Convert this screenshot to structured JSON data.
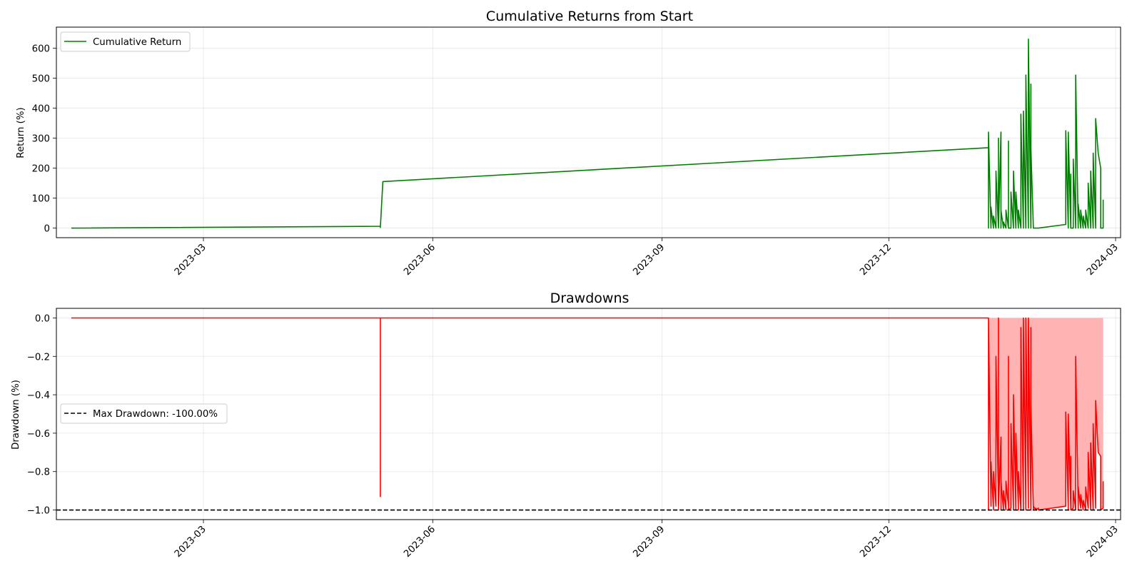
{
  "chart_data": [
    {
      "type": "line",
      "title": "Cumulative Returns from Start",
      "xlabel": "",
      "ylabel": "Return (%)",
      "x_range": [
        "2023-01-01",
        "2024-03-03"
      ],
      "ylim": [
        -32,
        670
      ],
      "grid": true,
      "legend_position": "top-left",
      "x_ticks": [
        "2023-03",
        "2023-06",
        "2023-09",
        "2023-12",
        "2024-03"
      ],
      "y_ticks": [
        0,
        100,
        200,
        300,
        400,
        500,
        600
      ],
      "series": [
        {
          "name": "Cumulative Return",
          "color": "#008000",
          "x": [
            "2023-01-07",
            "2023-05-11",
            "2023-05-11",
            "2023-05-12",
            "2024-01-10",
            "2024-01-10",
            "2024-01-10",
            "2024-01-11",
            "2024-01-11",
            "2024-01-12",
            "2024-01-12",
            "2024-01-13",
            "2024-01-13",
            "2024-01-13",
            "2024-01-14",
            "2024-01-14",
            "2024-01-14",
            "2024-01-15",
            "2024-01-15",
            "2024-01-15",
            "2024-01-16",
            "2024-01-16",
            "2024-01-17",
            "2024-01-17",
            "2024-01-18",
            "2024-01-18",
            "2024-01-18",
            "2024-01-19",
            "2024-01-19",
            "2024-01-20",
            "2024-01-20",
            "2024-01-21",
            "2024-01-21",
            "2024-01-22",
            "2024-01-22",
            "2024-01-23",
            "2024-01-23",
            "2024-01-24",
            "2024-01-24",
            "2024-01-25",
            "2024-01-25",
            "2024-01-26",
            "2024-01-26",
            "2024-01-27",
            "2024-01-27",
            "2024-01-27",
            "2024-01-28",
            "2024-01-28",
            "2024-01-29",
            "2024-01-29",
            "2024-01-29",
            "2024-01-30",
            "2024-01-30",
            "2024-02-10",
            "2024-02-10",
            "2024-02-11",
            "2024-02-11",
            "2024-02-12",
            "2024-02-12",
            "2024-02-12",
            "2024-02-13",
            "2024-02-13",
            "2024-02-14",
            "2024-02-14",
            "2024-02-15",
            "2024-02-15",
            "2024-02-16",
            "2024-02-16",
            "2024-02-17",
            "2024-02-17",
            "2024-02-18",
            "2024-02-18",
            "2024-02-19",
            "2024-02-19",
            "2024-02-20",
            "2024-02-20",
            "2024-02-21",
            "2024-02-21",
            "2024-02-22",
            "2024-02-22",
            "2024-02-23",
            "2024-02-24",
            "2024-02-24",
            "2024-02-25",
            "2024-02-25"
          ],
          "y": [
            0,
            6,
            2,
            155,
            268,
            0,
            320,
            0,
            70,
            0,
            40,
            0,
            90,
            190,
            0,
            300,
            0,
            320,
            0,
            60,
            0,
            20,
            0,
            60,
            0,
            290,
            0,
            0,
            120,
            0,
            190,
            0,
            120,
            0,
            60,
            0,
            380,
            0,
            390,
            0,
            510,
            0,
            630,
            0,
            480,
            270,
            0,
            0,
            0,
            0,
            0,
            0,
            0,
            12,
            325,
            0,
            320,
            0,
            180,
            0,
            0,
            230,
            0,
            510,
            0,
            80,
            0,
            60,
            0,
            40,
            0,
            60,
            0,
            150,
            0,
            190,
            0,
            250,
            0,
            365,
            250,
            200,
            0,
            0,
            95
          ]
        }
      ]
    },
    {
      "type": "area",
      "title": "Drawdowns",
      "xlabel": "",
      "ylabel": "Drawdown (%)",
      "x_range": [
        "2023-01-01",
        "2024-03-03"
      ],
      "ylim": [
        -1.05,
        0.05
      ],
      "grid": true,
      "legend_position": "center-left",
      "x_ticks": [
        "2023-03",
        "2023-06",
        "2023-09",
        "2023-12",
        "2024-03"
      ],
      "y_ticks": [
        0.0,
        -0.2,
        -0.4,
        -0.6,
        -0.8,
        -1.0
      ],
      "max_drawdown": {
        "name": "Max Drawdown: -100.00%",
        "value": -1.0,
        "color": "#000000"
      },
      "series": [
        {
          "name": "",
          "color": "#ff0000",
          "fill_color": "#ffb3b3",
          "x": [
            "2023-01-07",
            "2023-05-11",
            "2023-05-11",
            "2023-05-11",
            "2024-01-10",
            "2024-01-10",
            "2024-01-10",
            "2024-01-11",
            "2024-01-11",
            "2024-01-12",
            "2024-01-12",
            "2024-01-13",
            "2024-01-13",
            "2024-01-13",
            "2024-01-14",
            "2024-01-14",
            "2024-01-14",
            "2024-01-15",
            "2024-01-15",
            "2024-01-15",
            "2024-01-16",
            "2024-01-16",
            "2024-01-17",
            "2024-01-17",
            "2024-01-18",
            "2024-01-18",
            "2024-01-18",
            "2024-01-19",
            "2024-01-19",
            "2024-01-20",
            "2024-01-20",
            "2024-01-21",
            "2024-01-21",
            "2024-01-22",
            "2024-01-22",
            "2024-01-23",
            "2024-01-23",
            "2024-01-24",
            "2024-01-24",
            "2024-01-25",
            "2024-01-25",
            "2024-01-26",
            "2024-01-26",
            "2024-01-27",
            "2024-01-27",
            "2024-01-27",
            "2024-01-28",
            "2024-01-28",
            "2024-01-29",
            "2024-01-29",
            "2024-01-29",
            "2024-01-30",
            "2024-01-30",
            "2024-02-10",
            "2024-02-10",
            "2024-02-11",
            "2024-02-11",
            "2024-02-12",
            "2024-02-12",
            "2024-02-12",
            "2024-02-13",
            "2024-02-13",
            "2024-02-14",
            "2024-02-14",
            "2024-02-15",
            "2024-02-15",
            "2024-02-16",
            "2024-02-16",
            "2024-02-17",
            "2024-02-17",
            "2024-02-18",
            "2024-02-18",
            "2024-02-19",
            "2024-02-19",
            "2024-02-20",
            "2024-02-20",
            "2024-02-21",
            "2024-02-21",
            "2024-02-22",
            "2024-02-22",
            "2024-02-23",
            "2024-02-24",
            "2024-02-24",
            "2024-02-25",
            "2024-02-25"
          ],
          "y": [
            0,
            0,
            -0.93,
            0,
            0,
            -1.0,
            0,
            -0.98,
            -0.75,
            -1.0,
            -0.8,
            -0.98,
            -0.42,
            -0.2,
            -0.99,
            0,
            -1.0,
            -0.62,
            -1.0,
            -0.85,
            -1.0,
            -0.9,
            -1.0,
            -0.85,
            -0.98,
            -0.2,
            -1.0,
            -0.99,
            -0.55,
            -1.0,
            -0.4,
            -1.0,
            -0.6,
            -1.0,
            -0.8,
            -1.0,
            -0.05,
            -1.0,
            0,
            -1.0,
            0,
            -0.99,
            0,
            -1.0,
            -0.05,
            -0.45,
            -1.0,
            -0.98,
            -1.0,
            -0.99,
            -1.0,
            -0.99,
            -1.0,
            -0.98,
            -0.49,
            -1.0,
            -0.5,
            -0.99,
            -0.72,
            -1.0,
            -0.99,
            -0.9,
            -1.0,
            -0.2,
            -1.0,
            -0.88,
            -0.99,
            -0.92,
            -1.0,
            -0.95,
            -1.0,
            -0.88,
            -0.99,
            -0.7,
            -1.0,
            -0.65,
            -1.0,
            -0.55,
            -0.99,
            -0.43,
            -0.7,
            -0.72,
            -1.0,
            -0.99,
            -0.85
          ]
        }
      ]
    }
  ]
}
